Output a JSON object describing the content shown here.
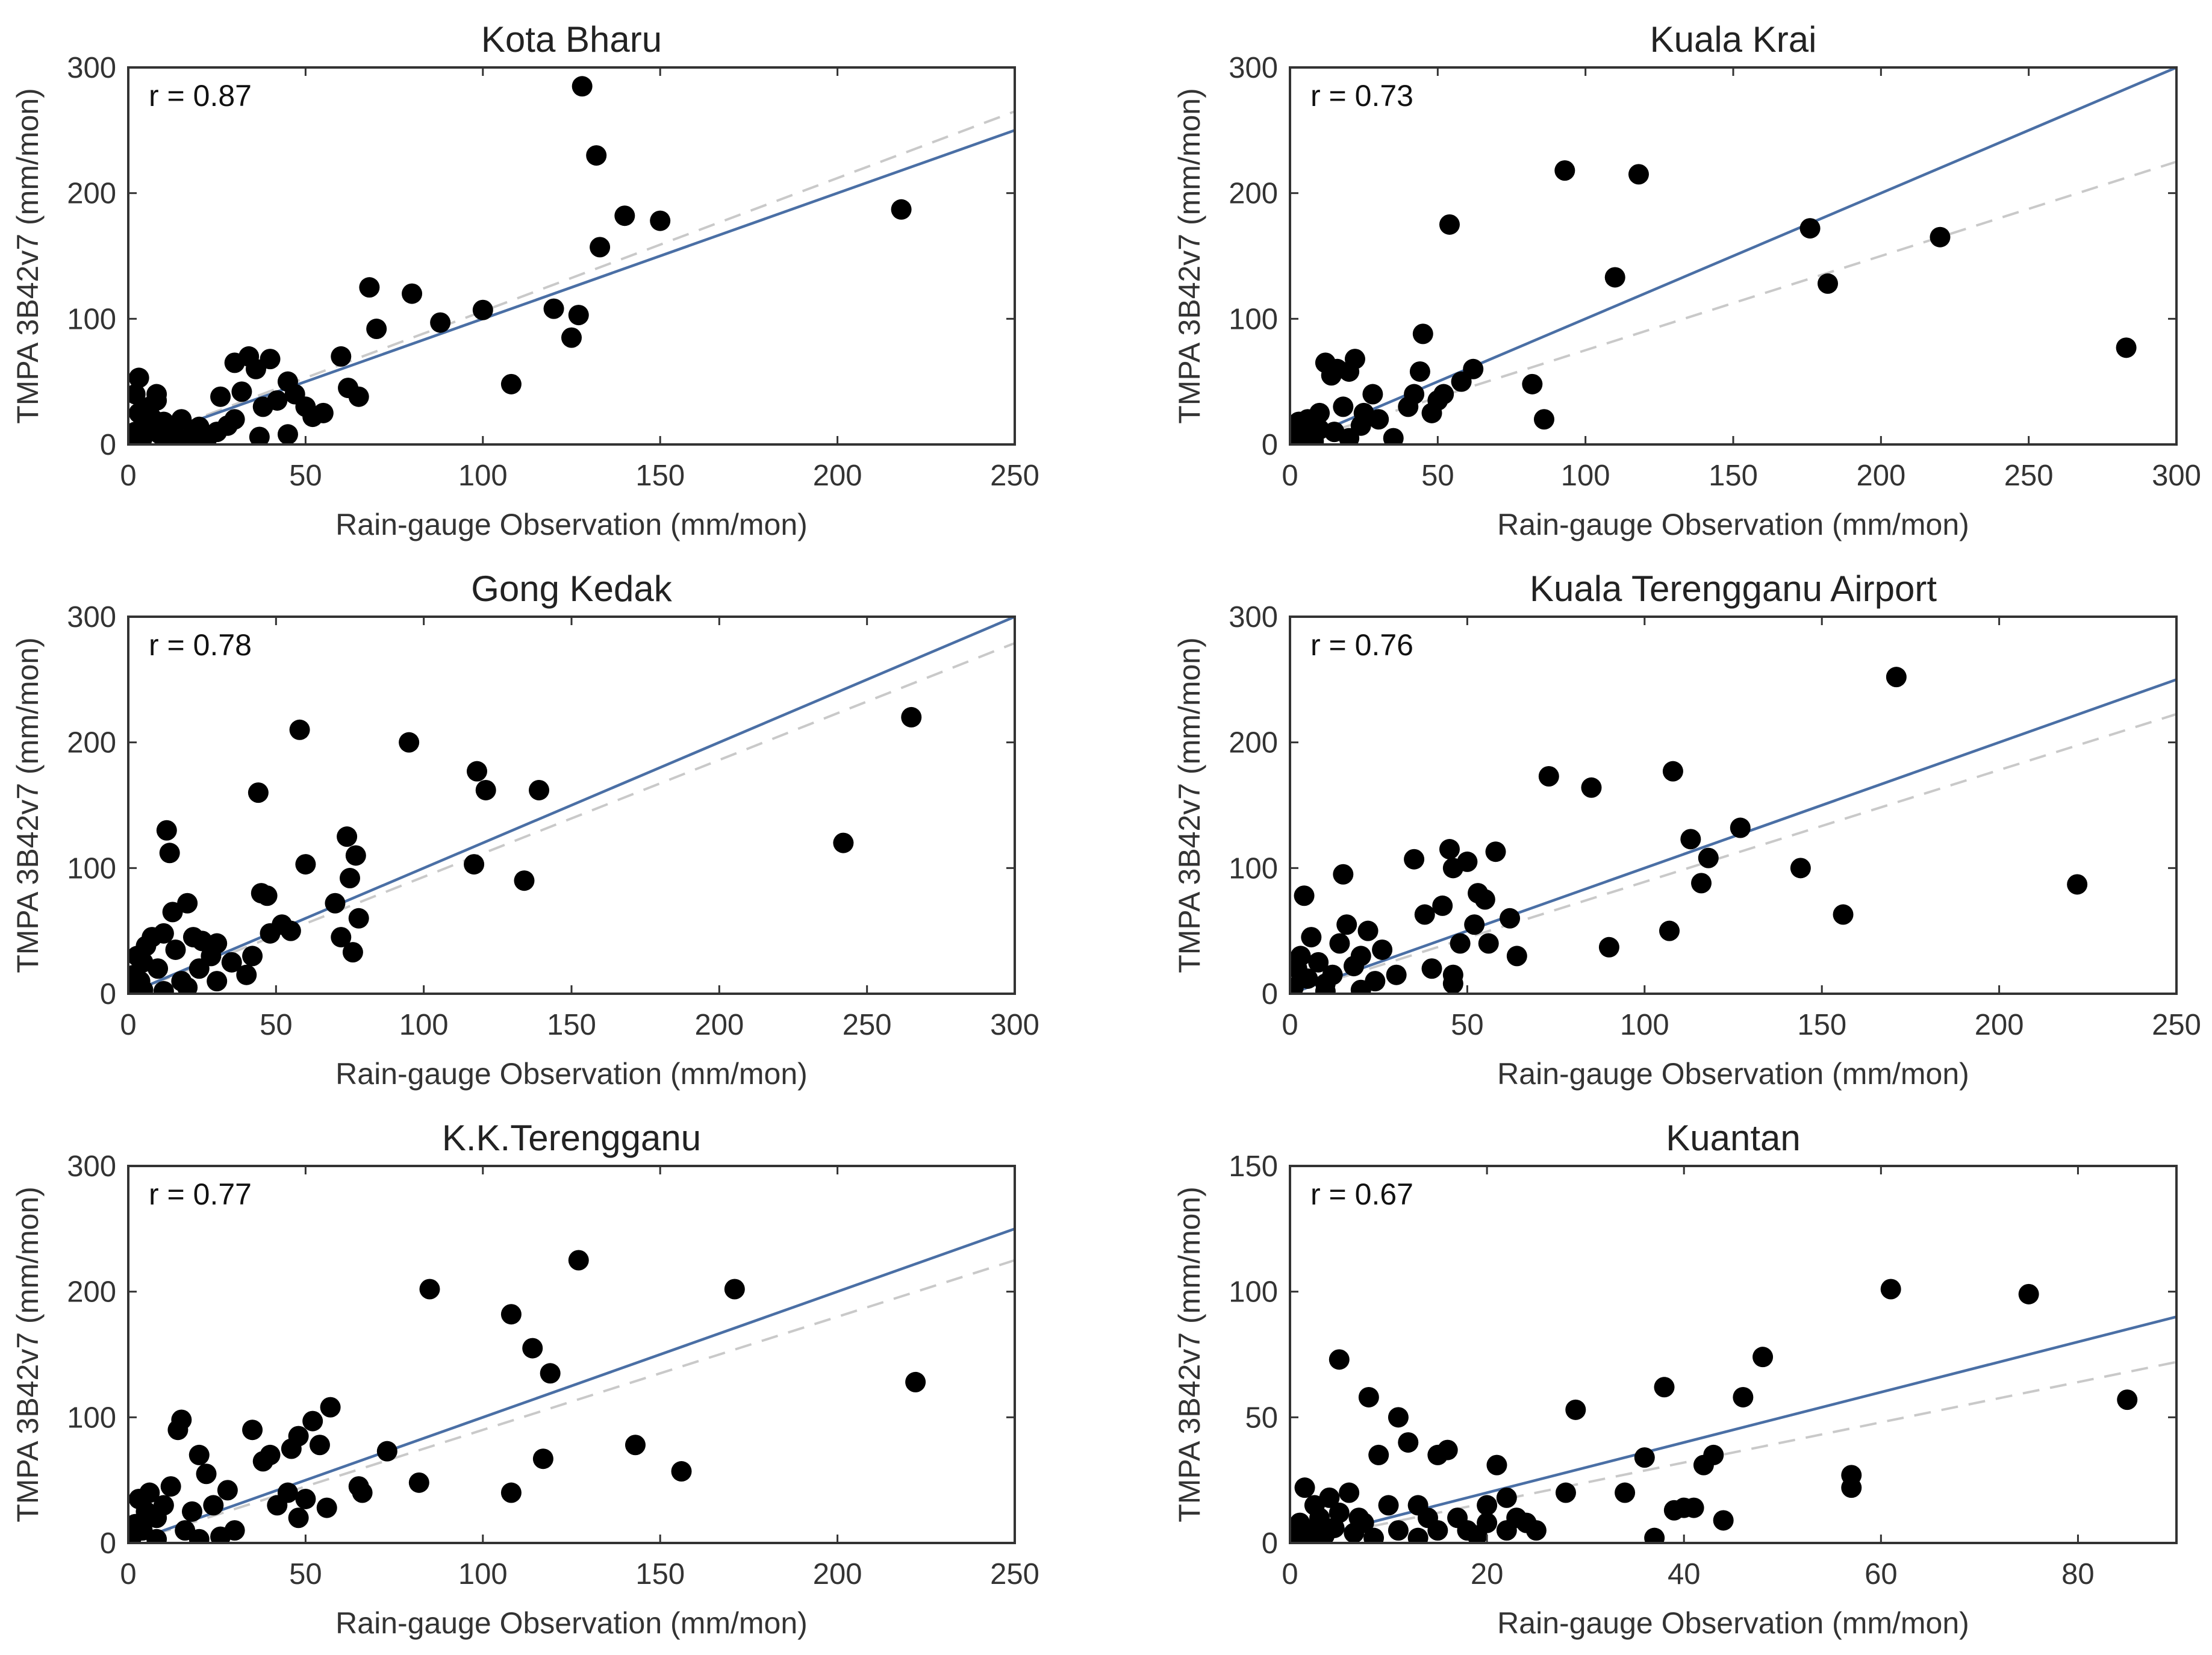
{
  "figure": {
    "panels": 6,
    "colors": {
      "points": "#000000",
      "fit_line": "#4a6fa5",
      "one_to_one_line": "#c9c9c9",
      "axes": "#333333"
    },
    "point_icon": "filled-circle"
  },
  "chart_data": [
    {
      "type": "scatter",
      "title": "Kota Bharu",
      "xlabel": "Rain-gauge Observation (mm/mon)",
      "ylabel": "TMPA 3B42v7 (mm/mon)",
      "xlim": [
        0,
        250
      ],
      "ylim": [
        0,
        300
      ],
      "xticks": [
        0,
        50,
        100,
        150,
        200,
        250
      ],
      "yticks": [
        0,
        100,
        200,
        300
      ],
      "r_label": "r = 0.87",
      "fit_line": {
        "slope": 1.0,
        "intercept": 0
      },
      "ref_line": {
        "slope": 1.06,
        "intercept": 0
      },
      "points": [
        [
          1,
          2
        ],
        [
          2,
          10
        ],
        [
          3,
          25
        ],
        [
          4,
          5
        ],
        [
          5,
          15
        ],
        [
          6,
          30
        ],
        [
          7,
          20
        ],
        [
          8,
          35
        ],
        [
          9,
          8
        ],
        [
          10,
          18
        ],
        [
          12,
          12
        ],
        [
          14,
          5
        ],
        [
          15,
          20
        ],
        [
          18,
          8
        ],
        [
          20,
          14
        ],
        [
          22,
          3
        ],
        [
          25,
          10
        ],
        [
          26,
          38
        ],
        [
          28,
          15
        ],
        [
          30,
          65
        ],
        [
          30,
          20
        ],
        [
          32,
          42
        ],
        [
          34,
          70
        ],
        [
          36,
          60
        ],
        [
          38,
          30
        ],
        [
          40,
          68
        ],
        [
          42,
          35
        ],
        [
          45,
          50
        ],
        [
          47,
          40
        ],
        [
          50,
          30
        ],
        [
          52,
          22
        ],
        [
          55,
          25
        ],
        [
          60,
          70
        ],
        [
          62,
          45
        ],
        [
          65,
          38
        ],
        [
          68,
          125
        ],
        [
          70,
          92
        ],
        [
          80,
          120
        ],
        [
          88,
          97
        ],
        [
          100,
          107
        ],
        [
          108,
          48
        ],
        [
          120,
          108
        ],
        [
          125,
          85
        ],
        [
          127,
          103
        ],
        [
          128,
          285
        ],
        [
          132,
          230
        ],
        [
          133,
          157
        ],
        [
          140,
          182
        ],
        [
          150,
          178
        ],
        [
          218,
          187
        ],
        [
          3,
          53
        ],
        [
          8,
          40
        ],
        [
          2,
          40
        ],
        [
          37,
          6
        ],
        [
          45,
          8
        ],
        [
          12,
          2
        ]
      ]
    },
    {
      "type": "scatter",
      "title": "Kuala Krai",
      "xlabel": "Rain-gauge Observation (mm/mon)",
      "ylabel": "TMPA 3B42v7 (mm/mon)",
      "xlim": [
        0,
        300
      ],
      "ylim": [
        0,
        300
      ],
      "xticks": [
        0,
        50,
        100,
        150,
        200,
        250,
        300
      ],
      "yticks": [
        0,
        100,
        200,
        300
      ],
      "r_label": "r = 0.73",
      "fit_line": {
        "slope": 1.0,
        "intercept": 0
      },
      "ref_line": {
        "slope": 0.75,
        "intercept": 0
      },
      "points": [
        [
          1,
          2
        ],
        [
          2,
          10
        ],
        [
          3,
          5
        ],
        [
          4,
          15
        ],
        [
          5,
          8
        ],
        [
          6,
          20
        ],
        [
          7,
          12
        ],
        [
          8,
          3
        ],
        [
          10,
          25
        ],
        [
          12,
          65
        ],
        [
          14,
          55
        ],
        [
          15,
          10
        ],
        [
          16,
          60
        ],
        [
          18,
          30
        ],
        [
          20,
          58
        ],
        [
          22,
          68
        ],
        [
          24,
          15
        ],
        [
          25,
          25
        ],
        [
          28,
          40
        ],
        [
          30,
          20
        ],
        [
          35,
          5
        ],
        [
          40,
          30
        ],
        [
          42,
          40
        ],
        [
          44,
          58
        ],
        [
          45,
          88
        ],
        [
          48,
          25
        ],
        [
          50,
          35
        ],
        [
          52,
          40
        ],
        [
          54,
          175
        ],
        [
          58,
          50
        ],
        [
          62,
          60
        ],
        [
          82,
          48
        ],
        [
          86,
          20
        ],
        [
          93,
          218
        ],
        [
          110,
          133
        ],
        [
          118,
          215
        ],
        [
          176,
          172
        ],
        [
          182,
          128
        ],
        [
          220,
          165
        ],
        [
          283,
          77
        ],
        [
          8,
          2
        ],
        [
          3,
          18
        ],
        [
          10,
          12
        ],
        [
          20,
          5
        ]
      ]
    },
    {
      "type": "scatter",
      "title": "Gong Kedak",
      "xlabel": "Rain-gauge Observation (mm/mon)",
      "ylabel": "TMPA 3B42v7 (mm/mon)",
      "xlim": [
        0,
        300
      ],
      "ylim": [
        0,
        300
      ],
      "xticks": [
        0,
        50,
        100,
        150,
        200,
        250,
        300
      ],
      "yticks": [
        0,
        100,
        200,
        300
      ],
      "r_label": "r = 0.78",
      "fit_line": {
        "slope": 1.0,
        "intercept": 0
      },
      "ref_line": {
        "slope": 0.93,
        "intercept": 0
      },
      "points": [
        [
          1,
          5
        ],
        [
          2,
          15
        ],
        [
          3,
          30
        ],
        [
          4,
          10
        ],
        [
          5,
          25
        ],
        [
          6,
          38
        ],
        [
          8,
          45
        ],
        [
          10,
          20
        ],
        [
          12,
          48
        ],
        [
          13,
          130
        ],
        [
          14,
          112
        ],
        [
          15,
          65
        ],
        [
          16,
          35
        ],
        [
          18,
          10
        ],
        [
          20,
          72
        ],
        [
          22,
          45
        ],
        [
          24,
          20
        ],
        [
          25,
          42
        ],
        [
          28,
          30
        ],
        [
          30,
          40
        ],
        [
          35,
          25
        ],
        [
          40,
          15
        ],
        [
          42,
          30
        ],
        [
          44,
          160
        ],
        [
          45,
          80
        ],
        [
          47,
          78
        ],
        [
          48,
          48
        ],
        [
          52,
          55
        ],
        [
          55,
          50
        ],
        [
          58,
          210
        ],
        [
          60,
          103
        ],
        [
          70,
          72
        ],
        [
          72,
          45
        ],
        [
          74,
          125
        ],
        [
          75,
          92
        ],
        [
          77,
          110
        ],
        [
          78,
          60
        ],
        [
          76,
          33
        ],
        [
          95,
          200
        ],
        [
          117,
          103
        ],
        [
          118,
          177
        ],
        [
          121,
          162
        ],
        [
          134,
          90
        ],
        [
          139,
          162
        ],
        [
          242,
          120
        ],
        [
          265,
          220
        ],
        [
          5,
          3
        ],
        [
          12,
          2
        ],
        [
          20,
          5
        ],
        [
          30,
          10
        ]
      ]
    },
    {
      "type": "scatter",
      "title": "Kuala Terengganu Airport",
      "xlabel": "Rain-gauge Observation (mm/mon)",
      "ylabel": "TMPA 3B42v7 (mm/mon)",
      "xlim": [
        0,
        250
      ],
      "ylim": [
        0,
        300
      ],
      "xticks": [
        0,
        50,
        100,
        150,
        200,
        250
      ],
      "yticks": [
        0,
        100,
        200,
        300
      ],
      "r_label": "r = 0.76",
      "fit_line": {
        "slope": 1.0,
        "intercept": 0
      },
      "ref_line": {
        "slope": 0.89,
        "intercept": 0
      },
      "points": [
        [
          1,
          5
        ],
        [
          2,
          20
        ],
        [
          3,
          30
        ],
        [
          4,
          78
        ],
        [
          5,
          12
        ],
        [
          6,
          45
        ],
        [
          8,
          25
        ],
        [
          10,
          8
        ],
        [
          12,
          15
        ],
        [
          14,
          40
        ],
        [
          15,
          95
        ],
        [
          16,
          55
        ],
        [
          18,
          22
        ],
        [
          20,
          30
        ],
        [
          22,
          50
        ],
        [
          24,
          10
        ],
        [
          26,
          35
        ],
        [
          30,
          15
        ],
        [
          35,
          107
        ],
        [
          38,
          63
        ],
        [
          40,
          20
        ],
        [
          43,
          70
        ],
        [
          45,
          115
        ],
        [
          46,
          100
        ],
        [
          48,
          40
        ],
        [
          50,
          105
        ],
        [
          52,
          55
        ],
        [
          53,
          80
        ],
        [
          55,
          75
        ],
        [
          56,
          40
        ],
        [
          58,
          113
        ],
        [
          62,
          60
        ],
        [
          64,
          30
        ],
        [
          73,
          173
        ],
        [
          85,
          164
        ],
        [
          90,
          37
        ],
        [
          107,
          50
        ],
        [
          108,
          177
        ],
        [
          113,
          123
        ],
        [
          116,
          88
        ],
        [
          118,
          108
        ],
        [
          127,
          132
        ],
        [
          144,
          100
        ],
        [
          156,
          63
        ],
        [
          171,
          252
        ],
        [
          222,
          87
        ],
        [
          46,
          8
        ],
        [
          46,
          15
        ],
        [
          20,
          3
        ],
        [
          10,
          2
        ]
      ]
    },
    {
      "type": "scatter",
      "title": "K.K.Terengganu",
      "xlabel": "Rain-gauge Observation (mm/mon)",
      "ylabel": "TMPA 3B42v7 (mm/mon)",
      "xlim": [
        0,
        250
      ],
      "ylim": [
        0,
        300
      ],
      "xticks": [
        0,
        50,
        100,
        150,
        200,
        250
      ],
      "yticks": [
        0,
        100,
        200,
        300
      ],
      "r_label": "r = 0.77",
      "fit_line": {
        "slope": 1.0,
        "intercept": 0
      },
      "ref_line": {
        "slope": 0.9,
        "intercept": 0
      },
      "points": [
        [
          1,
          5
        ],
        [
          2,
          15
        ],
        [
          3,
          35
        ],
        [
          4,
          10
        ],
        [
          5,
          25
        ],
        [
          6,
          40
        ],
        [
          8,
          20
        ],
        [
          10,
          30
        ],
        [
          12,
          45
        ],
        [
          14,
          90
        ],
        [
          15,
          98
        ],
        [
          16,
          10
        ],
        [
          18,
          25
        ],
        [
          20,
          70
        ],
        [
          22,
          55
        ],
        [
          24,
          30
        ],
        [
          26,
          5
        ],
        [
          28,
          42
        ],
        [
          30,
          10
        ],
        [
          35,
          90
        ],
        [
          38,
          65
        ],
        [
          40,
          70
        ],
        [
          42,
          30
        ],
        [
          45,
          40
        ],
        [
          46,
          75
        ],
        [
          48,
          85
        ],
        [
          50,
          35
        ],
        [
          52,
          97
        ],
        [
          54,
          78
        ],
        [
          56,
          28
        ],
        [
          57,
          108
        ],
        [
          65,
          45
        ],
        [
          66,
          40
        ],
        [
          73,
          73
        ],
        [
          82,
          48
        ],
        [
          85,
          202
        ],
        [
          108,
          40
        ],
        [
          108,
          182
        ],
        [
          114,
          155
        ],
        [
          117,
          67
        ],
        [
          119,
          135
        ],
        [
          127,
          225
        ],
        [
          143,
          78
        ],
        [
          156,
          57
        ],
        [
          171,
          202
        ],
        [
          222,
          128
        ],
        [
          48,
          20
        ],
        [
          8,
          3
        ],
        [
          20,
          3
        ]
      ]
    },
    {
      "type": "scatter",
      "title": "Kuantan",
      "xlabel": "Rain-gauge Observation (mm/mon)",
      "ylabel": "TMPA 3B42v7 (mm/mon)",
      "xlim": [
        0,
        90
      ],
      "ylim": [
        0,
        150
      ],
      "xticks": [
        0,
        20,
        40,
        60,
        80
      ],
      "yticks": [
        0,
        50,
        100,
        150
      ],
      "r_label": "r = 0.67",
      "fit_line": {
        "slope": 1.0,
        "intercept": 0
      },
      "ref_line": {
        "slope": 0.8,
        "intercept": 0
      },
      "points": [
        [
          0.5,
          2
        ],
        [
          1,
          8
        ],
        [
          1.5,
          22
        ],
        [
          2,
          5
        ],
        [
          2.5,
          15
        ],
        [
          3,
          10
        ],
        [
          3.5,
          3
        ],
        [
          4,
          18
        ],
        [
          4.5,
          6
        ],
        [
          5,
          12
        ],
        [
          5,
          73
        ],
        [
          6,
          20
        ],
        [
          6.5,
          4
        ],
        [
          7,
          10
        ],
        [
          7.5,
          8
        ],
        [
          8,
          58
        ],
        [
          8.5,
          2
        ],
        [
          9,
          35
        ],
        [
          10,
          15
        ],
        [
          11,
          5
        ],
        [
          11,
          50
        ],
        [
          12,
          40
        ],
        [
          13,
          2
        ],
        [
          13,
          15
        ],
        [
          14,
          10
        ],
        [
          15,
          35
        ],
        [
          15,
          5
        ],
        [
          16,
          37
        ],
        [
          17,
          10
        ],
        [
          18,
          5
        ],
        [
          19,
          3
        ],
        [
          20,
          15
        ],
        [
          20,
          8
        ],
        [
          21,
          31
        ],
        [
          22,
          18
        ],
        [
          22,
          5
        ],
        [
          23,
          10
        ],
        [
          24,
          8
        ],
        [
          25,
          5
        ],
        [
          28,
          20
        ],
        [
          29,
          53
        ],
        [
          34,
          20
        ],
        [
          36,
          34
        ],
        [
          37,
          2
        ],
        [
          38,
          62
        ],
        [
          39,
          13
        ],
        [
          40,
          14
        ],
        [
          41,
          14
        ],
        [
          42,
          31
        ],
        [
          43,
          35
        ],
        [
          44,
          9
        ],
        [
          46,
          58
        ],
        [
          48,
          74
        ],
        [
          57,
          27
        ],
        [
          57,
          22
        ],
        [
          61,
          101
        ],
        [
          75,
          99
        ],
        [
          85,
          57
        ],
        [
          2,
          0
        ],
        [
          3,
          1
        ]
      ]
    }
  ]
}
